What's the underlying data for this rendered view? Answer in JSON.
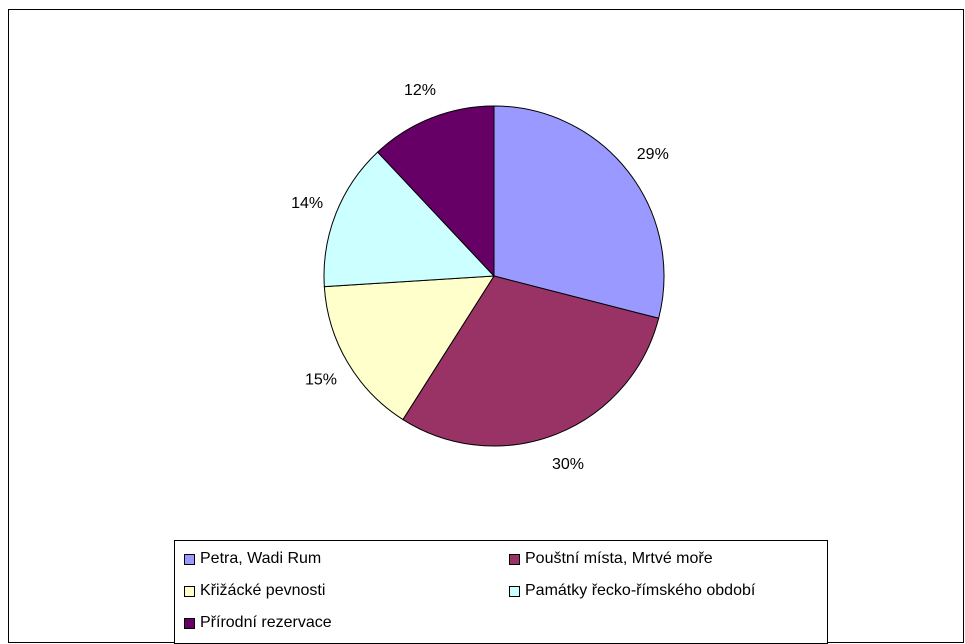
{
  "chart_data": {
    "type": "pie",
    "title": "",
    "slices": [
      {
        "label": "Petra, Wadi Rum",
        "value": 29,
        "display": "29%",
        "color": "#9999ff"
      },
      {
        "label": "Pouštní místa, Mrtvé moře",
        "value": 30,
        "display": "30%",
        "color": "#993366"
      },
      {
        "label": "Křižácké pevnosti",
        "value": 15,
        "display": "15%",
        "color": "#ffffcc"
      },
      {
        "label": "Památky řecko-římského období",
        "value": 14,
        "display": "14%",
        "color": "#ccffff"
      },
      {
        "label": "Přírodní rezervace",
        "value": 12,
        "display": "12%",
        "color": "#660066"
      }
    ],
    "start": "12 o'clock",
    "direction": "clockwise",
    "legend_position": "bottom"
  }
}
